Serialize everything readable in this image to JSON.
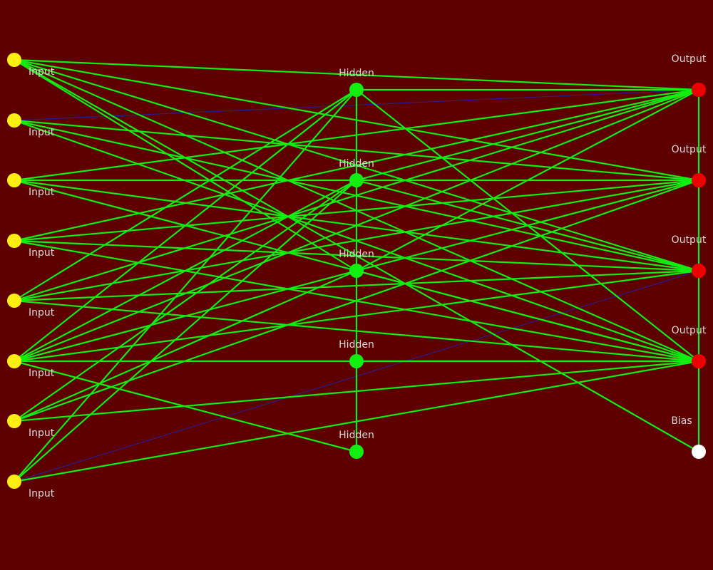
{
  "colors": {
    "background": "#5e0000",
    "input_node": "#ffee11",
    "hidden_node": "#11ee11",
    "output_node": "#ee0000",
    "bias_node": "#ffffff",
    "strong_edge": "#11ee11",
    "weak_edge": "#2222aa",
    "label": "#d8d8d8"
  },
  "labels": {
    "input": "Input",
    "hidden": "Hidden",
    "output": "Output",
    "bias": "Bias"
  },
  "layers": {
    "input_count": 8,
    "hidden_count": 5,
    "output_count": 4,
    "bias_count": 1
  }
}
